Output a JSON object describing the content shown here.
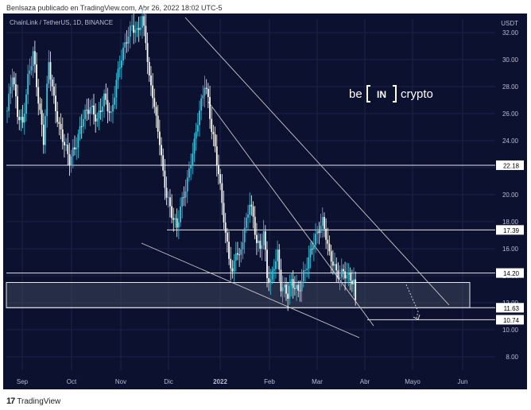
{
  "header": {
    "publisher": "Benlsaza publicado en TradingView.com, Abr 26, 2022 18:02 UTC-5"
  },
  "footer": {
    "brand": "TradingView",
    "logo_icon": "tradingview-logo-icon"
  },
  "watermark": {
    "left": "be",
    "middle": "IN",
    "right": "crypto"
  },
  "chart_data": {
    "type": "candlestick",
    "title": "ChainLink / TetherUS, 1D, BINANCE",
    "currency": "USDT",
    "ylim": [
      7,
      33
    ],
    "x_ticks": [
      "Sep",
      "Oct",
      "Nov",
      "Dic",
      "2022",
      "Feb",
      "Mar",
      "Abr",
      "Mayo",
      "Jun"
    ],
    "y_ticks": [
      8.0,
      10.0,
      12.0,
      14.0,
      16.0,
      18.0,
      20.0,
      22.0,
      24.0,
      26.0,
      28.0,
      30.0,
      32.0
    ],
    "horizontal_levels": [
      22.18,
      17.39,
      14.2,
      11.63,
      10.74
    ],
    "support_zone": [
      11.63,
      13.5
    ],
    "close_path": [
      [
        0,
        26.2
      ],
      [
        3,
        29.0
      ],
      [
        6,
        26.0
      ],
      [
        9,
        25.2
      ],
      [
        12,
        28.6
      ],
      [
        15,
        30.5
      ],
      [
        18,
        27.0
      ],
      [
        21,
        24.0
      ],
      [
        24,
        29.8
      ],
      [
        27,
        27.0
      ],
      [
        30,
        25.0
      ],
      [
        33,
        23.8
      ],
      [
        36,
        22.5
      ],
      [
        40,
        23.8
      ],
      [
        44,
        25.8
      ],
      [
        48,
        26.5
      ],
      [
        52,
        25.5
      ],
      [
        56,
        27.2
      ],
      [
        60,
        25.8
      ],
      [
        63,
        28.4
      ],
      [
        66,
        30.2
      ],
      [
        69,
        31.5
      ],
      [
        72,
        32.5
      ],
      [
        75,
        32.0
      ],
      [
        78,
        33.0
      ],
      [
        80,
        31.5
      ],
      [
        82,
        28.5
      ],
      [
        84,
        27.5
      ],
      [
        86,
        25.5
      ],
      [
        88,
        24.0
      ],
      [
        90,
        21.5
      ],
      [
        92,
        20.0
      ],
      [
        94,
        19.0
      ],
      [
        96,
        18.2
      ],
      [
        98,
        17.6
      ],
      [
        100,
        19.0
      ],
      [
        102,
        20.0
      ],
      [
        104,
        21.0
      ],
      [
        106,
        22.5
      ],
      [
        108,
        23.8
      ],
      [
        110,
        25.5
      ],
      [
        112,
        26.8
      ],
      [
        114,
        28.2
      ],
      [
        116,
        27.0
      ],
      [
        118,
        24.8
      ],
      [
        120,
        23.5
      ],
      [
        122,
        21.5
      ],
      [
        124,
        19.5
      ],
      [
        126,
        17.0
      ],
      [
        128,
        15.5
      ],
      [
        130,
        14.0
      ],
      [
        132,
        16.0
      ],
      [
        134,
        15.2
      ],
      [
        136,
        16.8
      ],
      [
        138,
        18.0
      ],
      [
        140,
        19.5
      ],
      [
        142,
        18.2
      ],
      [
        144,
        16.5
      ],
      [
        146,
        16.0
      ],
      [
        148,
        17.2
      ],
      [
        150,
        14.0
      ],
      [
        152,
        13.5
      ],
      [
        154,
        14.8
      ],
      [
        156,
        15.6
      ],
      [
        158,
        13.2
      ],
      [
        160,
        13.0
      ],
      [
        162,
        12.6
      ],
      [
        164,
        13.5
      ],
      [
        166,
        13.2
      ],
      [
        168,
        12.8
      ],
      [
        170,
        13.6
      ],
      [
        172,
        14.5
      ],
      [
        174,
        15.2
      ],
      [
        176,
        16.2
      ],
      [
        178,
        16.8
      ],
      [
        180,
        17.5
      ],
      [
        182,
        18.0
      ],
      [
        184,
        17.0
      ],
      [
        186,
        15.5
      ],
      [
        188,
        15.0
      ],
      [
        190,
        14.2
      ],
      [
        192,
        14.0
      ],
      [
        194,
        14.3
      ],
      [
        196,
        14.0
      ],
      [
        198,
        13.8
      ],
      [
        200,
        13.5
      ],
      [
        201,
        12.2
      ]
    ],
    "day_span": [
      0,
      280
    ],
    "events_icon": "trend-lines"
  }
}
